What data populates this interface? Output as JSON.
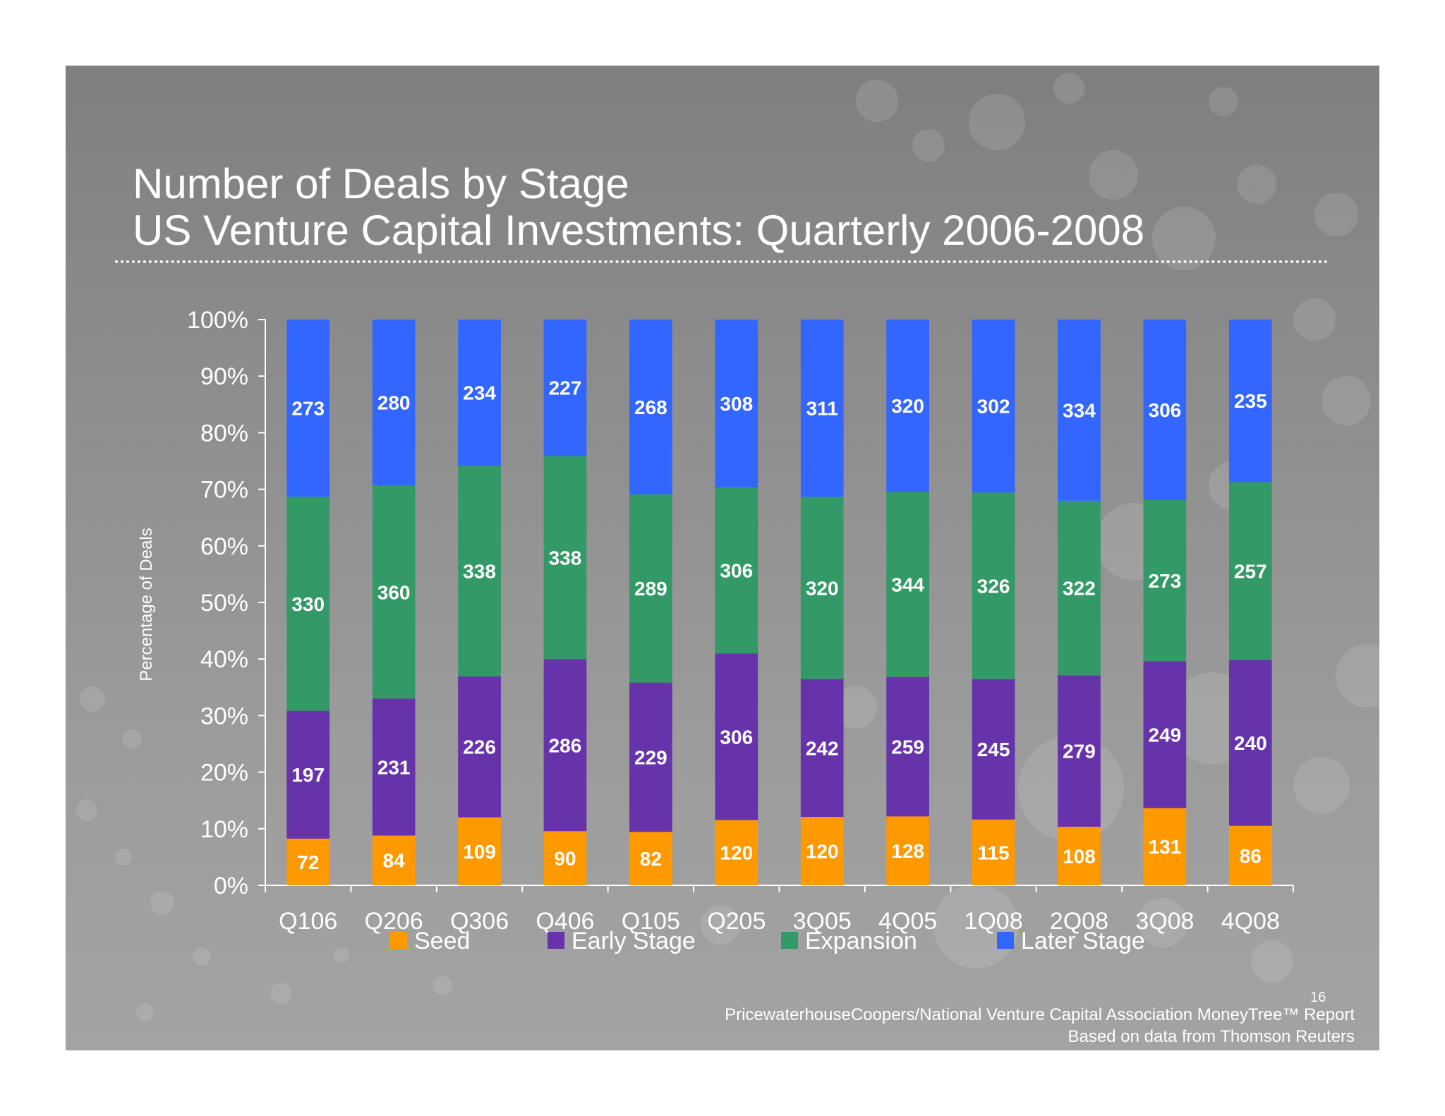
{
  "slide": {
    "title_line1": "Number of Deals by Stage",
    "title_line2": "US Venture Capital Investments: Quarterly 2006-2008",
    "source_line1": "PricewaterhouseCoopers/National Venture Capital Association MoneyTree™ Report",
    "source_line2": "Based on data from Thomson Reuters",
    "page_number": "16",
    "background_color": "#8f8f8f"
  },
  "chart_data": {
    "type": "bar",
    "stacked": "percent",
    "title": "Number of Deals by Stage",
    "subtitle": "US Venture Capital Investments: Quarterly 2006-2008",
    "xlabel": "",
    "ylabel": "Percentage of Deals",
    "ylim": [
      0,
      100
    ],
    "yticks": [
      "0%",
      "10%",
      "20%",
      "30%",
      "40%",
      "50%",
      "60%",
      "70%",
      "80%",
      "90%",
      "100%"
    ],
    "grid": false,
    "legend_position": "bottom",
    "categories": [
      "Q106",
      "Q206",
      "Q306",
      "Q406",
      "Q105",
      "Q205",
      "3Q05",
      "4Q05",
      "1Q08",
      "2Q08",
      "3Q08",
      "4Q08"
    ],
    "series": [
      {
        "name": "Seed",
        "color": "#ff9900",
        "label_color": "#ffffff",
        "values": [
          72,
          84,
          109,
          90,
          82,
          120,
          120,
          128,
          115,
          108,
          131,
          86
        ]
      },
      {
        "name": "Early Stage",
        "color": "#6633aa",
        "label_color": "#ffffff",
        "values": [
          197,
          231,
          226,
          286,
          229,
          306,
          242,
          259,
          245,
          279,
          249,
          240
        ]
      },
      {
        "name": "Expansion",
        "color": "#339966",
        "label_color": "#ffffff",
        "values": [
          330,
          360,
          338,
          338,
          289,
          306,
          320,
          344,
          326,
          322,
          273,
          257
        ]
      },
      {
        "name": "Later Stage",
        "color": "#3366ff",
        "label_color": "#ffffff",
        "values": [
          273,
          280,
          234,
          227,
          268,
          308,
          311,
          320,
          302,
          334,
          306,
          235
        ]
      }
    ]
  }
}
